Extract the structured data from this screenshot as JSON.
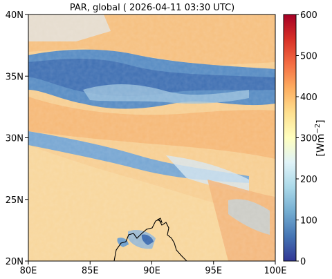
{
  "title": "PAR, global ( 2026-04-11 03:30 UTC)",
  "map": {
    "x_ticks": [
      "80E",
      "85E",
      "90E",
      "95E",
      "100E"
    ],
    "y_ticks": [
      "40N",
      "35N",
      "30N",
      "25N",
      "20N"
    ],
    "lon_range": [
      80,
      100
    ],
    "lat_range": [
      20,
      40
    ]
  },
  "colorbar": {
    "label": "[Wm",
    "label_exp": "−2",
    "label_close": "]",
    "ticks": [
      "0",
      "100",
      "200",
      "300",
      "400",
      "500",
      "600"
    ],
    "range": [
      0,
      600
    ],
    "colormap": [
      "#313695",
      "#4575b4",
      "#74add1",
      "#abd9e9",
      "#e0f3f8",
      "#ffffbf",
      "#fee090",
      "#fdae61",
      "#f46d43",
      "#d73027",
      "#a50026"
    ]
  },
  "colors": {
    "background_field": "#f6c98a",
    "cloud_band": "#5b8ec4",
    "coastline": "#000000"
  }
}
